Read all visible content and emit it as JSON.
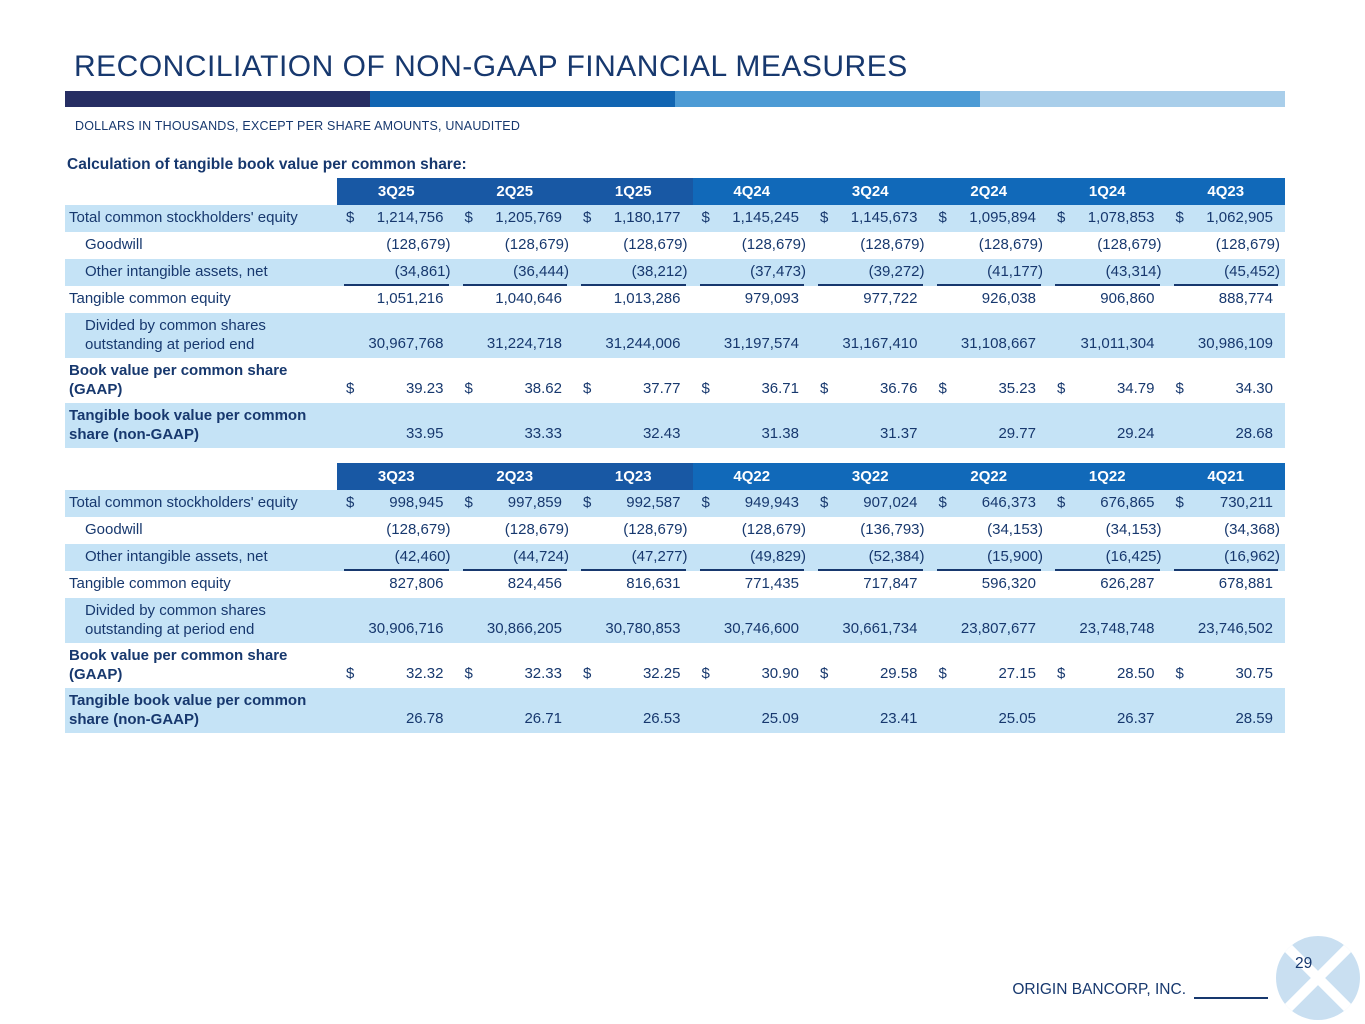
{
  "slide": {
    "title": "RECONCILIATION OF NON-GAAP FINANCIAL MEASURES",
    "subtitle": "DOLLARS IN THOUSANDS, EXCEPT PER SHARE AMOUNTS, UNAUDITED",
    "section_heading": "Calculation of tangible book value per common share:",
    "footer_company": "ORIGIN BANCORP, INC.",
    "page_number": "29"
  },
  "colors": {
    "text_navy": "#17386E",
    "row_shade": "#C5E3F6",
    "header_dark": "#1858A4",
    "header_light": "#1169B9",
    "logo_fill": "#C9DFF1",
    "accent_bar": [
      "#262E63",
      "#1165B2",
      "#4D9BD5",
      "#A9CEEA"
    ]
  },
  "header_dark_count": 3,
  "tables": [
    {
      "columns": [
        "3Q25",
        "2Q25",
        "1Q25",
        "4Q24",
        "3Q24",
        "2Q24",
        "1Q24",
        "4Q23"
      ],
      "rows": [
        {
          "label": "Total common stockholders' equity",
          "indent": false,
          "bold": false,
          "shaded": true,
          "dollar": true,
          "underline": false,
          "values": [
            "1,214,756",
            "1,205,769",
            "1,180,177",
            "1,145,245",
            "1,145,673",
            "1,095,894",
            "1,078,853",
            "1,062,905"
          ]
        },
        {
          "label": "Goodwill",
          "indent": true,
          "bold": false,
          "shaded": false,
          "dollar": false,
          "underline": false,
          "values": [
            "(128,679)",
            "(128,679)",
            "(128,679)",
            "(128,679)",
            "(128,679)",
            "(128,679)",
            "(128,679)",
            "(128,679)"
          ]
        },
        {
          "label": "Other intangible assets, net",
          "indent": true,
          "bold": false,
          "shaded": true,
          "dollar": false,
          "underline": true,
          "values": [
            "(34,861)",
            "(36,444)",
            "(38,212)",
            "(37,473)",
            "(39,272)",
            "(41,177)",
            "(43,314)",
            "(45,452)"
          ]
        },
        {
          "label": "Tangible common equity",
          "indent": false,
          "bold": false,
          "shaded": false,
          "dollar": false,
          "underline": false,
          "values": [
            "1,051,216",
            "1,040,646",
            "1,013,286",
            "979,093",
            "977,722",
            "926,038",
            "906,860",
            "888,774"
          ]
        },
        {
          "label": "Divided by common shares outstanding at period end",
          "indent": true,
          "bold": false,
          "shaded": true,
          "dollar": false,
          "underline": false,
          "values": [
            "30,967,768",
            "31,224,718",
            "31,244,006",
            "31,197,574",
            "31,167,410",
            "31,108,667",
            "31,011,304",
            "30,986,109"
          ]
        },
        {
          "label": "Book value per common share (GAAP)",
          "indent": false,
          "bold": true,
          "shaded": false,
          "dollar": true,
          "underline": false,
          "values": [
            "39.23",
            "38.62",
            "37.77",
            "36.71",
            "36.76",
            "35.23",
            "34.79",
            "34.30"
          ]
        },
        {
          "label": "Tangible book value per common share (non-GAAP)",
          "indent": false,
          "bold": true,
          "shaded": true,
          "dollar": false,
          "underline": false,
          "values": [
            "33.95",
            "33.33",
            "32.43",
            "31.38",
            "31.37",
            "29.77",
            "29.24",
            "28.68"
          ]
        }
      ]
    },
    {
      "columns": [
        "3Q23",
        "2Q23",
        "1Q23",
        "4Q22",
        "3Q22",
        "2Q22",
        "1Q22",
        "4Q21"
      ],
      "rows": [
        {
          "label": "Total common stockholders' equity",
          "indent": false,
          "bold": false,
          "shaded": true,
          "dollar": true,
          "underline": false,
          "values": [
            "998,945",
            "997,859",
            "992,587",
            "949,943",
            "907,024",
            "646,373",
            "676,865",
            "730,211"
          ]
        },
        {
          "label": "Goodwill",
          "indent": true,
          "bold": false,
          "shaded": false,
          "dollar": false,
          "underline": false,
          "values": [
            "(128,679)",
            "(128,679)",
            "(128,679)",
            "(128,679)",
            "(136,793)",
            "(34,153)",
            "(34,153)",
            "(34,368)"
          ]
        },
        {
          "label": "Other intangible assets, net",
          "indent": true,
          "bold": false,
          "shaded": true,
          "dollar": false,
          "underline": true,
          "values": [
            "(42,460)",
            "(44,724)",
            "(47,277)",
            "(49,829)",
            "(52,384)",
            "(15,900)",
            "(16,425)",
            "(16,962)"
          ]
        },
        {
          "label": "Tangible common equity",
          "indent": false,
          "bold": false,
          "shaded": false,
          "dollar": false,
          "underline": false,
          "values": [
            "827,806",
            "824,456",
            "816,631",
            "771,435",
            "717,847",
            "596,320",
            "626,287",
            "678,881"
          ]
        },
        {
          "label": "Divided by common shares outstanding at period end",
          "indent": true,
          "bold": false,
          "shaded": true,
          "dollar": false,
          "underline": false,
          "values": [
            "30,906,716",
            "30,866,205",
            "30,780,853",
            "30,746,600",
            "30,661,734",
            "23,807,677",
            "23,748,748",
            "23,746,502"
          ]
        },
        {
          "label": "Book value per common share (GAAP)",
          "indent": false,
          "bold": true,
          "shaded": false,
          "dollar": true,
          "underline": false,
          "values": [
            "32.32",
            "32.33",
            "32.25",
            "30.90",
            "29.58",
            "27.15",
            "28.50",
            "30.75"
          ]
        },
        {
          "label": "Tangible book value per common share (non-GAAP)",
          "indent": false,
          "bold": true,
          "shaded": true,
          "dollar": false,
          "underline": false,
          "values": [
            "26.78",
            "26.71",
            "26.53",
            "25.09",
            "23.41",
            "25.05",
            "26.37",
            "28.59"
          ]
        }
      ]
    }
  ]
}
